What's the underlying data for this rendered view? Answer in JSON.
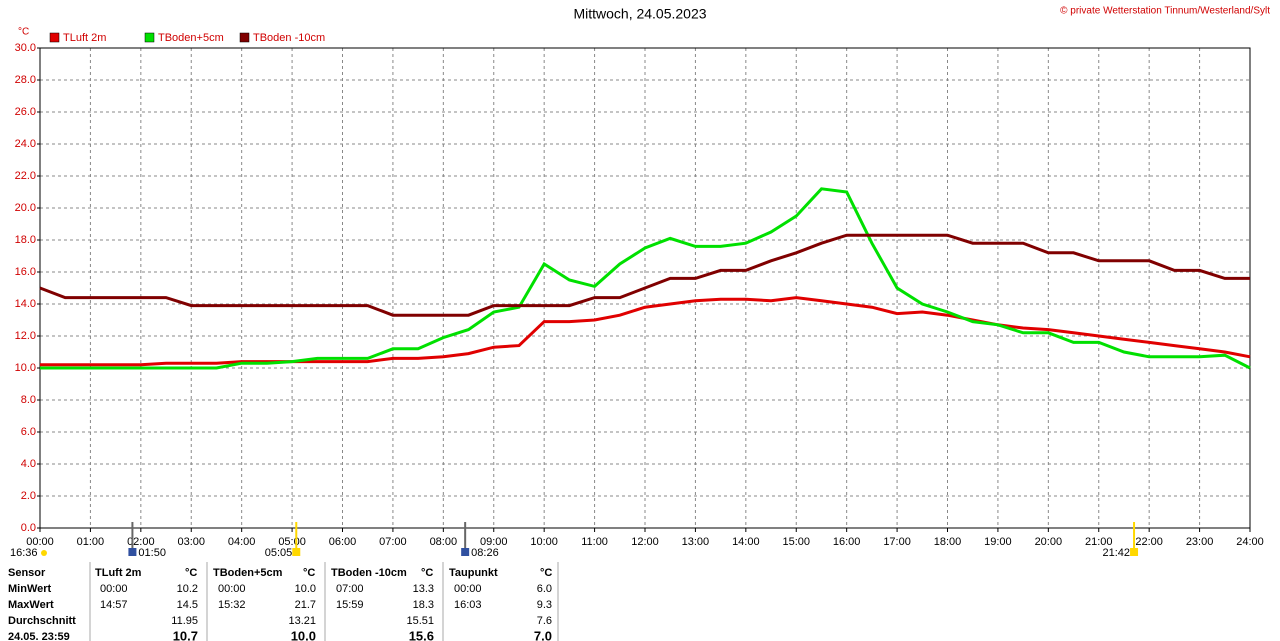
{
  "chart_data": {
    "type": "line",
    "title": "Mittwoch, 24.05.2023",
    "copyright": "© private Wetterstation Tinnum/Westerland/Sylt",
    "y_unit": "°C",
    "x": [
      0,
      0.5,
      1,
      1.5,
      2,
      2.5,
      3,
      3.5,
      4,
      4.5,
      5,
      5.5,
      6,
      6.5,
      7,
      7.5,
      8,
      8.5,
      9,
      9.5,
      10,
      10.5,
      11,
      11.5,
      12,
      12.5,
      13,
      13.5,
      14,
      14.5,
      15,
      15.5,
      16,
      16.5,
      17,
      17.5,
      18,
      18.5,
      19,
      19.5,
      20,
      20.5,
      21,
      21.5,
      22,
      22.5,
      23,
      23.5,
      24
    ],
    "xlim": [
      0,
      24
    ],
    "xticks": [
      {
        "value": 0,
        "label": "00:00"
      },
      {
        "value": 1,
        "label": "01:00"
      },
      {
        "value": 2,
        "label": "02:00"
      },
      {
        "value": 3,
        "label": "03:00"
      },
      {
        "value": 4,
        "label": "04:00"
      },
      {
        "value": 5,
        "label": "05:00"
      },
      {
        "value": 6,
        "label": "06:00"
      },
      {
        "value": 7,
        "label": "07:00"
      },
      {
        "value": 8,
        "label": "08:00"
      },
      {
        "value": 9,
        "label": "09:00"
      },
      {
        "value": 10,
        "label": "10:00"
      },
      {
        "value": 11,
        "label": "11:00"
      },
      {
        "value": 12,
        "label": "12:00"
      },
      {
        "value": 13,
        "label": "13:00"
      },
      {
        "value": 14,
        "label": "14:00"
      },
      {
        "value": 15,
        "label": "15:00"
      },
      {
        "value": 16,
        "label": "16:00"
      },
      {
        "value": 17,
        "label": "17:00"
      },
      {
        "value": 18,
        "label": "18:00"
      },
      {
        "value": 19,
        "label": "19:00"
      },
      {
        "value": 20,
        "label": "20:00"
      },
      {
        "value": 21,
        "label": "21:00"
      },
      {
        "value": 22,
        "label": "22:00"
      },
      {
        "value": 23,
        "label": "23:00"
      },
      {
        "value": 24,
        "label": "24:00"
      }
    ],
    "ylim": [
      0,
      30
    ],
    "yticks": [
      {
        "value": 0,
        "label": "0.0"
      },
      {
        "value": 2,
        "label": "2.0"
      },
      {
        "value": 4,
        "label": "4.0"
      },
      {
        "value": 6,
        "label": "6.0"
      },
      {
        "value": 8,
        "label": "8.0"
      },
      {
        "value": 10,
        "label": "10.0"
      },
      {
        "value": 12,
        "label": "12.0"
      },
      {
        "value": 14,
        "label": "14.0"
      },
      {
        "value": 16,
        "label": "16.0"
      },
      {
        "value": 18,
        "label": "18.0"
      },
      {
        "value": 20,
        "label": "20.0"
      },
      {
        "value": 22,
        "label": "22.0"
      },
      {
        "value": 24,
        "label": "24.0"
      },
      {
        "value": 26,
        "label": "26.0"
      },
      {
        "value": 28,
        "label": "28.0"
      },
      {
        "value": 30,
        "label": "30.0"
      }
    ],
    "grid": true,
    "series": [
      {
        "name": "TLuft 2m",
        "color": "#e00000",
        "values": [
          10.2,
          10.2,
          10.2,
          10.2,
          10.2,
          10.3,
          10.3,
          10.3,
          10.4,
          10.4,
          10.4,
          10.4,
          10.4,
          10.4,
          10.6,
          10.6,
          10.7,
          10.9,
          11.3,
          11.4,
          12.9,
          12.9,
          13.0,
          13.3,
          13.8,
          14.0,
          14.2,
          14.3,
          14.3,
          14.2,
          14.4,
          14.2,
          14.0,
          13.8,
          13.4,
          13.5,
          13.3,
          13.0,
          12.7,
          12.5,
          12.4,
          12.2,
          12.0,
          11.8,
          11.6,
          11.4,
          11.2,
          11.0,
          10.7
        ]
      },
      {
        "name": "TBoden+5cm",
        "color": "#00e000",
        "values": [
          10.0,
          10.0,
          10.0,
          10.0,
          10.0,
          10.0,
          10.0,
          10.0,
          10.3,
          10.3,
          10.4,
          10.6,
          10.6,
          10.6,
          11.2,
          11.2,
          11.9,
          12.4,
          13.5,
          13.8,
          16.5,
          15.5,
          15.1,
          16.5,
          17.5,
          18.1,
          17.6,
          17.6,
          17.8,
          18.5,
          19.5,
          21.2,
          21.0,
          17.8,
          15.0,
          14.0,
          13.5,
          12.9,
          12.7,
          12.2,
          12.2,
          11.6,
          11.6,
          11.0,
          10.7,
          10.7,
          10.7,
          10.8,
          10.0
        ]
      },
      {
        "name": "TBoden -10cm",
        "color": "#800000",
        "values": [
          15.0,
          14.4,
          14.4,
          14.4,
          14.4,
          14.4,
          13.9,
          13.9,
          13.9,
          13.9,
          13.9,
          13.9,
          13.9,
          13.9,
          13.3,
          13.3,
          13.3,
          13.3,
          13.9,
          13.9,
          13.9,
          13.9,
          14.4,
          14.4,
          15.0,
          15.6,
          15.6,
          16.1,
          16.1,
          16.7,
          17.2,
          17.8,
          18.3,
          18.3,
          18.3,
          18.3,
          18.3,
          17.8,
          17.8,
          17.8,
          17.2,
          17.2,
          16.7,
          16.7,
          16.7,
          16.1,
          16.1,
          15.6,
          15.6
        ]
      }
    ],
    "left_note": "16:36",
    "annotations": [
      {
        "label": "01:50",
        "x": 1.833
      },
      {
        "label": "05:05",
        "x": 5.083
      },
      {
        "label": "08:26",
        "x": 8.433
      },
      {
        "label": "21:42",
        "x": 21.7
      }
    ]
  },
  "stats_table": {
    "header": [
      "Sensor",
      [
        "TLuft 2m",
        "°C"
      ],
      [
        "TBoden+5cm",
        "°C"
      ],
      [
        "TBoden -10cm",
        "°C"
      ],
      [
        "Taupunkt",
        "°C"
      ]
    ],
    "rows": [
      {
        "label": "MinWert",
        "cells": [
          [
            "00:00",
            "10.2"
          ],
          [
            "00:00",
            "10.0"
          ],
          [
            "07:00",
            "13.3"
          ],
          [
            "00:00",
            "6.0"
          ]
        ]
      },
      {
        "label": "MaxWert",
        "cells": [
          [
            "14:57",
            "14.5"
          ],
          [
            "15:32",
            "21.7"
          ],
          [
            "15:59",
            "18.3"
          ],
          [
            "16:03",
            "9.3"
          ]
        ]
      },
      {
        "label": "Durchschnitt",
        "cells": [
          [
            "11.95"
          ],
          [
            "13.21"
          ],
          [
            "15.51"
          ],
          [
            "7.6"
          ]
        ]
      },
      {
        "label": "24.05. 23:59",
        "cells": [
          [
            "10.7"
          ],
          [
            "10.0"
          ],
          [
            "15.6"
          ],
          [
            "7.0"
          ]
        ]
      }
    ]
  }
}
